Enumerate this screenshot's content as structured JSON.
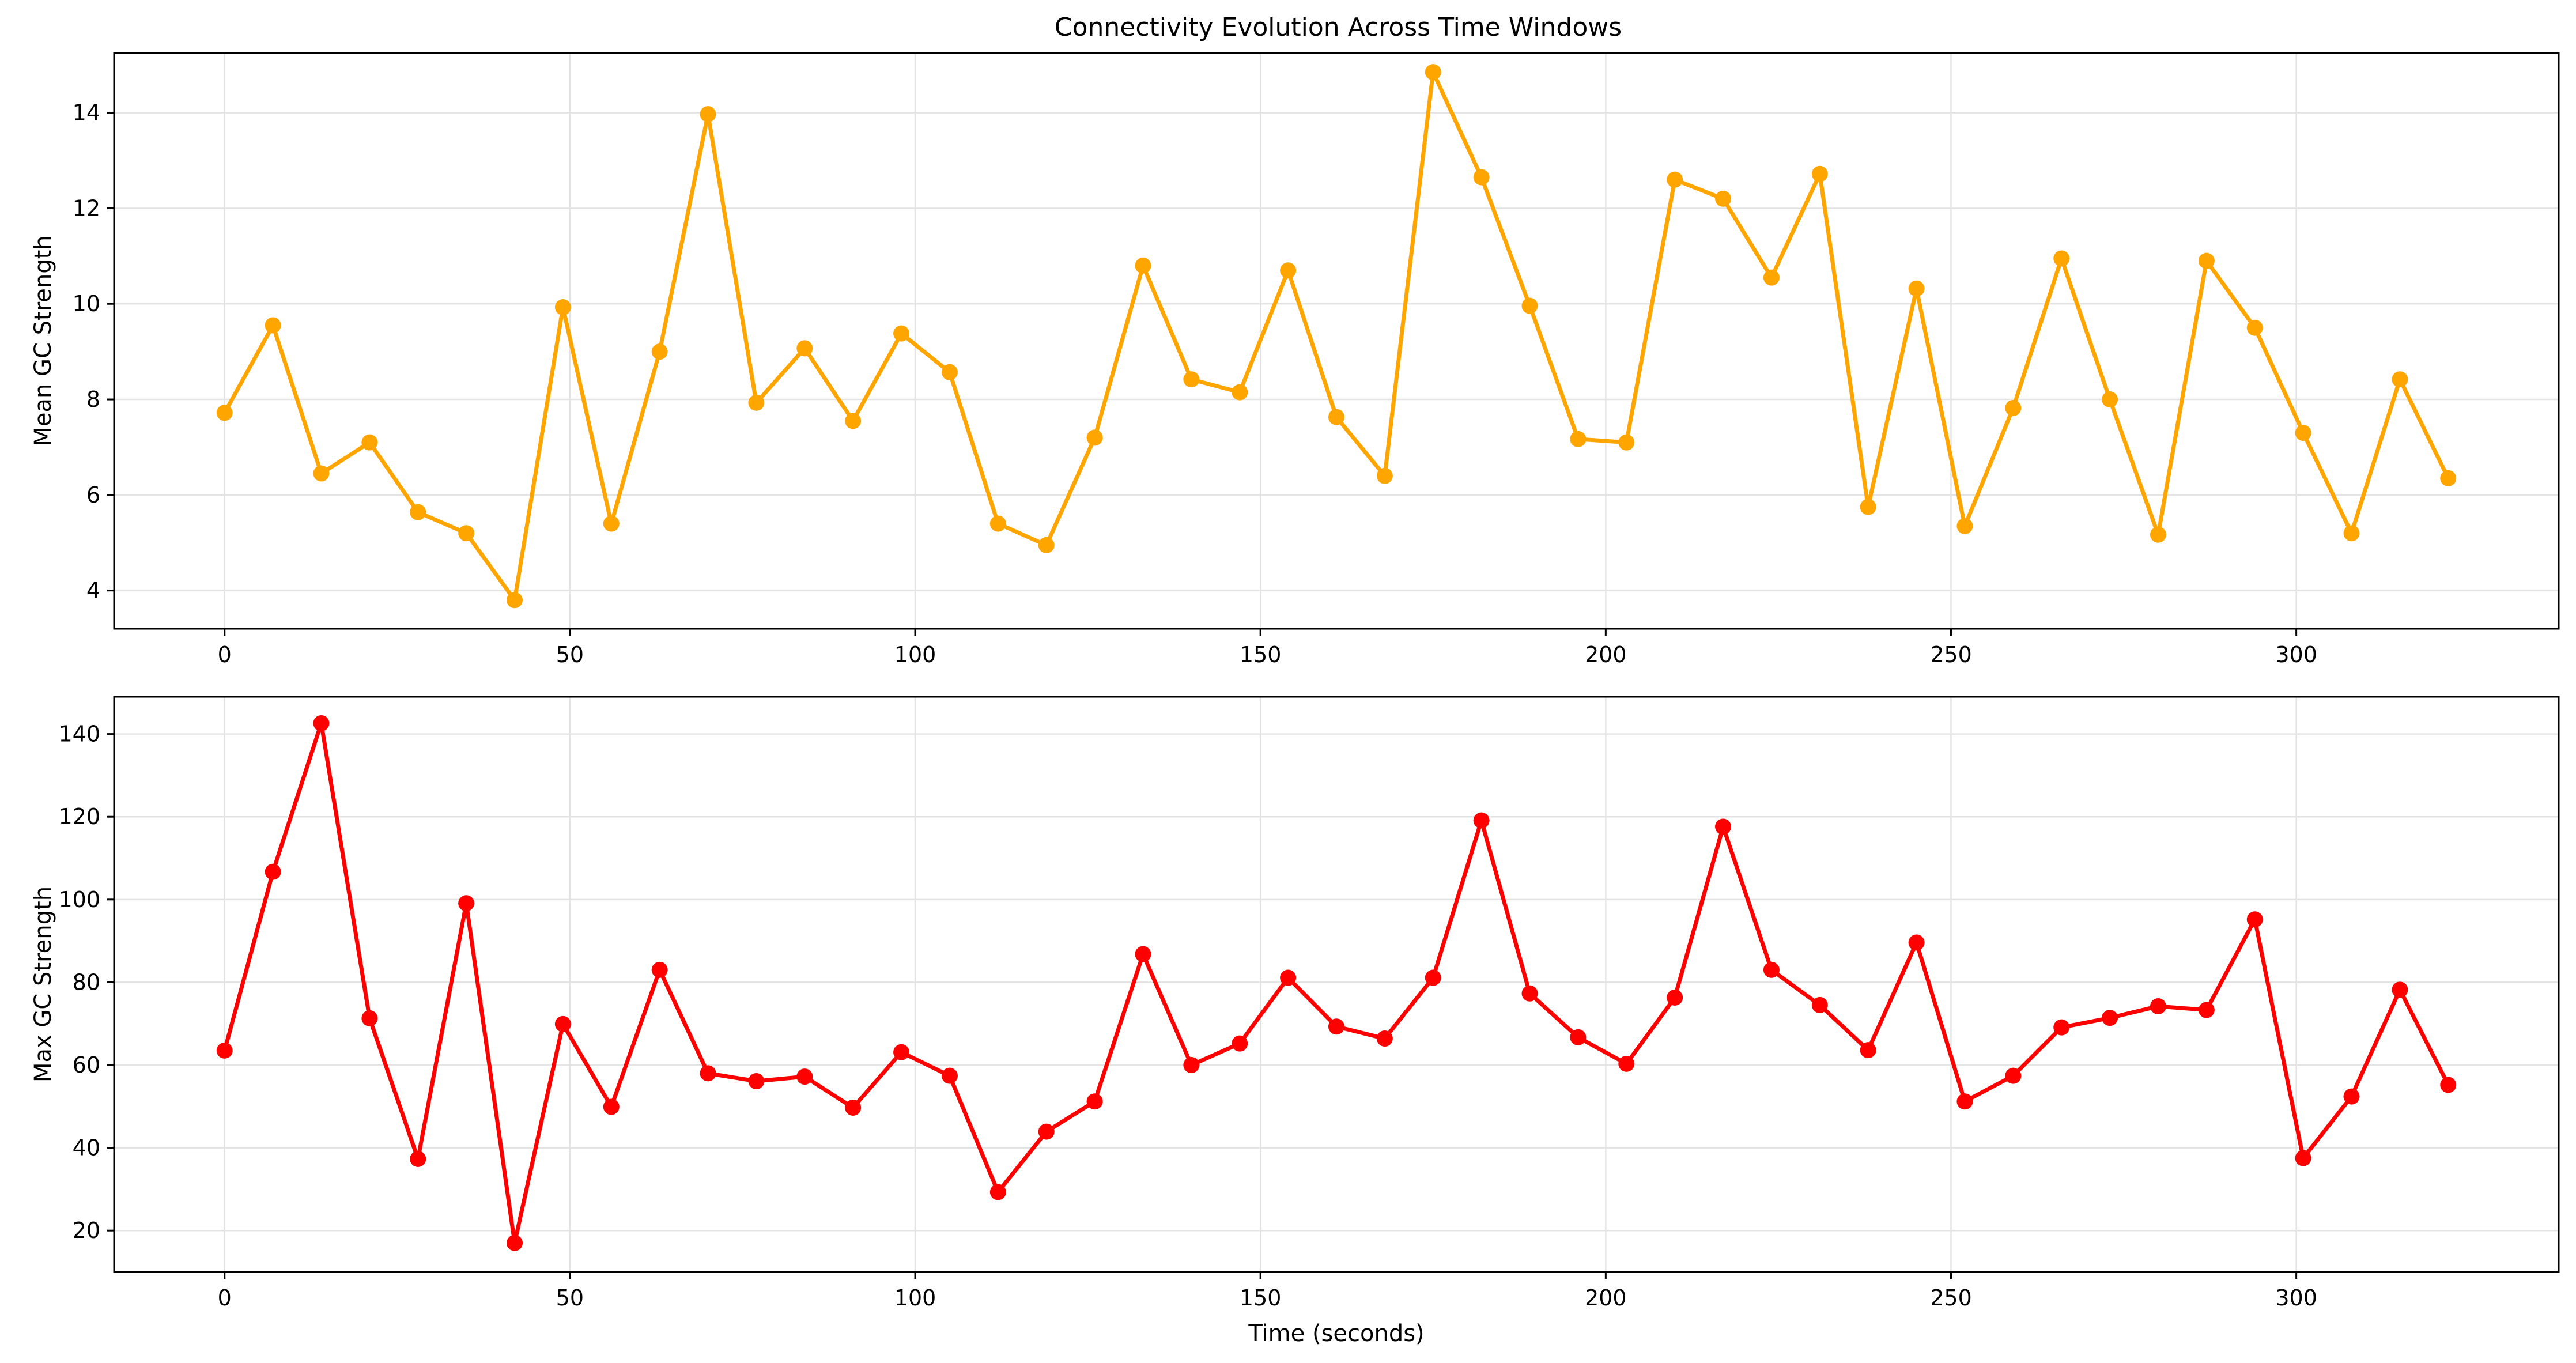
{
  "chart_data": [
    {
      "type": "line",
      "title": "Connectivity Evolution Across Time Windows",
      "xlabel": "",
      "ylabel": "Mean GC Strength",
      "xlim": [
        -16,
        338
      ],
      "ylim": [
        3.2,
        15.25
      ],
      "xticks": [
        0,
        50,
        100,
        150,
        200,
        250,
        300
      ],
      "yticks": [
        4,
        6,
        8,
        10,
        12,
        14
      ],
      "grid": true,
      "color": "#ffa500",
      "marker": "circle",
      "x": [
        0,
        7,
        14,
        21,
        28,
        35,
        42,
        49,
        56,
        63,
        70,
        77,
        84,
        91,
        98,
        105,
        112,
        119,
        126,
        133,
        140,
        147,
        154,
        161,
        168,
        175,
        182,
        189,
        196,
        203,
        210,
        217,
        224,
        231,
        238,
        245,
        252,
        259,
        266,
        273,
        280,
        287,
        294,
        301,
        308,
        315,
        322
      ],
      "values": [
        7.72,
        9.55,
        6.45,
        7.1,
        5.64,
        5.2,
        3.8,
        9.93,
        5.4,
        9.0,
        13.97,
        7.93,
        9.07,
        7.55,
        9.38,
        8.57,
        5.4,
        4.95,
        7.2,
        10.8,
        8.42,
        8.15,
        10.7,
        7.63,
        6.4,
        14.85,
        12.65,
        9.96,
        7.17,
        7.1,
        12.6,
        12.2,
        10.55,
        12.72,
        5.75,
        10.32,
        5.35,
        7.82,
        10.95,
        8.0,
        5.17,
        10.9,
        9.5,
        7.3,
        5.2,
        8.42,
        6.35
      ]
    },
    {
      "type": "line",
      "title": "",
      "xlabel": "Time (seconds)",
      "ylabel": "Max GC Strength",
      "xlim": [
        -16,
        338
      ],
      "ylim": [
        10,
        149
      ],
      "xticks": [
        0,
        50,
        100,
        150,
        200,
        250,
        300
      ],
      "yticks": [
        20,
        40,
        60,
        80,
        100,
        120,
        140
      ],
      "grid": true,
      "color": "#ff0000",
      "marker": "circle",
      "x": [
        0,
        7,
        14,
        21,
        28,
        35,
        42,
        49,
        56,
        63,
        70,
        77,
        84,
        91,
        98,
        105,
        112,
        119,
        126,
        133,
        140,
        147,
        154,
        161,
        168,
        175,
        182,
        189,
        196,
        203,
        210,
        217,
        224,
        231,
        238,
        245,
        252,
        259,
        266,
        273,
        280,
        287,
        294,
        301,
        308,
        315,
        322
      ],
      "values": [
        63.5,
        106.7,
        142.6,
        71.3,
        37.3,
        99.1,
        17.0,
        69.9,
        49.9,
        83.0,
        58.0,
        56.1,
        57.2,
        49.7,
        63.1,
        57.4,
        29.3,
        43.9,
        51.2,
        86.8,
        60.0,
        65.2,
        81.1,
        69.3,
        66.4,
        81.1,
        119.1,
        77.3,
        66.7,
        60.3,
        76.3,
        117.6,
        83.0,
        74.5,
        63.6,
        89.6,
        51.2,
        57.4,
        69.1,
        71.4,
        74.2,
        73.3,
        95.2,
        37.5,
        52.4,
        78.2,
        55.2
      ]
    }
  ]
}
